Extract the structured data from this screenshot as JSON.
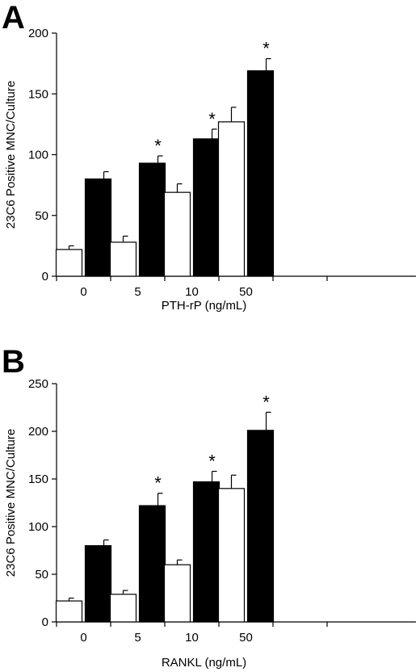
{
  "chart_data": [
    {
      "type": "bar",
      "panel": "A",
      "title": "",
      "xlabel": "PTH-rP (ng/mL)",
      "ylabel": "23C6 Positive MNC/Culture",
      "ylim": [
        0,
        200
      ],
      "yticks": [
        0,
        50,
        100,
        150,
        200
      ],
      "categories": [
        "0",
        "5",
        "10",
        "50"
      ],
      "series": [
        {
          "color": "#ffffff",
          "values": [
            22,
            28,
            69,
            127
          ],
          "errors": [
            3,
            5,
            7,
            12
          ]
        },
        {
          "color": "#000000",
          "values": [
            80,
            93,
            113,
            169
          ],
          "errors": [
            6,
            6,
            8,
            10
          ]
        }
      ],
      "significance": [
        "",
        "*",
        "*",
        "*"
      ],
      "grid": false,
      "legend": "none"
    },
    {
      "type": "bar",
      "panel": "B",
      "title": "",
      "xlabel": "RANKL (ng/mL)",
      "ylabel": "23C6 Positive MNC/Culture",
      "ylim": [
        0,
        250
      ],
      "yticks": [
        0,
        50,
        100,
        150,
        200,
        250
      ],
      "categories": [
        "0",
        "5",
        "10",
        "50"
      ],
      "series": [
        {
          "color": "#ffffff",
          "values": [
            22,
            29,
            60,
            140
          ],
          "errors": [
            3,
            4,
            5,
            14
          ]
        },
        {
          "color": "#000000",
          "values": [
            80,
            122,
            147,
            201
          ],
          "errors": [
            6,
            13,
            11,
            19
          ]
        }
      ],
      "significance": [
        "",
        "*",
        "*",
        "*"
      ],
      "grid": false,
      "legend": "none"
    }
  ]
}
